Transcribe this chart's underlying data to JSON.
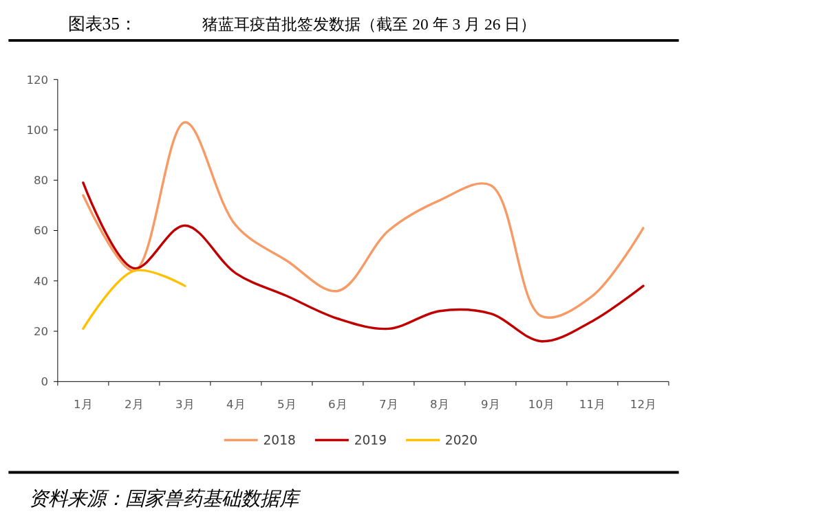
{
  "chart_data": {
    "type": "line",
    "title": "图表35：",
    "subtitle": "猪蓝耳疫苗批签发数据（截至 20 年 3 月 26 日）",
    "categories": [
      "1月",
      "2月",
      "3月",
      "4月",
      "5月",
      "6月",
      "7月",
      "8月",
      "9月",
      "10月",
      "11月",
      "12月"
    ],
    "series": [
      {
        "name": "2018",
        "color": "#f79a66",
        "values": [
          74,
          44,
          103,
          62,
          48,
          36,
          60,
          72,
          78,
          26,
          34,
          61
        ]
      },
      {
        "name": "2019",
        "color": "#c00000",
        "values": [
          79,
          45,
          62,
          43,
          34,
          25,
          21,
          28,
          27,
          16,
          24,
          38
        ]
      },
      {
        "name": "2020",
        "color": "#ffc000",
        "values": [
          21,
          44,
          38,
          null,
          null,
          null,
          null,
          null,
          null,
          null,
          null,
          null
        ]
      }
    ],
    "ylim": [
      0,
      120
    ],
    "yticks": [
      0,
      20,
      40,
      60,
      80,
      100,
      120
    ],
    "grid": false,
    "legend": "bottom",
    "marker": "none",
    "line_style": "solid",
    "annotations": [
      "资料来源：国家兽药基础数据库"
    ]
  }
}
